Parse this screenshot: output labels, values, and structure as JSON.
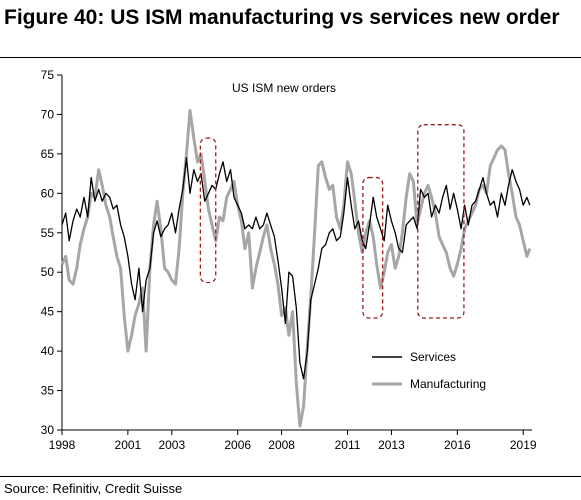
{
  "figure": {
    "title": "Figure 40: US ISM manufacturing vs services new order",
    "source": "Source: Refinitiv, Credit Suisse"
  },
  "colors": {
    "services": "#000000",
    "manufacturing": "#a6a6a6",
    "highlight_box": "#9c1e1e"
  },
  "chart_data": {
    "type": "line",
    "title": "US ISM new orders",
    "xlabel": "",
    "ylabel": "",
    "xlim": [
      1998,
      2019.4
    ],
    "ylim": [
      30,
      75
    ],
    "x_ticks": [
      1998,
      2001,
      2003,
      2006,
      2008,
      2011,
      2013,
      2016,
      2019
    ],
    "y_ticks": [
      30,
      35,
      40,
      45,
      50,
      55,
      60,
      65,
      70,
      75
    ],
    "grid": false,
    "legend": "bottom-right",
    "highlight_periods": [
      {
        "x": [
          2004.3,
          2005.0
        ],
        "y": [
          48.7,
          67.0
        ]
      },
      {
        "x": [
          2011.7,
          2012.6
        ],
        "y": [
          44.2,
          62.0
        ]
      },
      {
        "x": [
          2014.2,
          2016.3
        ],
        "y": [
          44.2,
          68.7
        ]
      }
    ],
    "series": [
      {
        "name": "Services",
        "x": [
          1998.0,
          1998.17,
          1998.33,
          1998.5,
          1998.67,
          1998.83,
          1999.0,
          1999.17,
          1999.33,
          1999.5,
          1999.67,
          1999.83,
          2000.0,
          2000.17,
          2000.33,
          2000.5,
          2000.67,
          2000.83,
          2001.0,
          2001.17,
          2001.33,
          2001.5,
          2001.67,
          2001.83,
          2002.0,
          2002.17,
          2002.33,
          2002.5,
          2002.67,
          2002.83,
          2003.0,
          2003.17,
          2003.33,
          2003.5,
          2003.67,
          2003.83,
          2004.0,
          2004.17,
          2004.33,
          2004.5,
          2004.67,
          2004.83,
          2005.0,
          2005.17,
          2005.33,
          2005.5,
          2005.67,
          2005.83,
          2006.0,
          2006.17,
          2006.33,
          2006.5,
          2006.67,
          2006.83,
          2007.0,
          2007.17,
          2007.33,
          2007.5,
          2007.67,
          2007.83,
          2008.0,
          2008.17,
          2008.33,
          2008.5,
          2008.67,
          2008.83,
          2009.0,
          2009.17,
          2009.33,
          2009.5,
          2009.67,
          2009.83,
          2010.0,
          2010.17,
          2010.33,
          2010.5,
          2010.67,
          2010.83,
          2011.0,
          2011.17,
          2011.33,
          2011.5,
          2011.67,
          2011.83,
          2012.0,
          2012.17,
          2012.33,
          2012.5,
          2012.67,
          2012.83,
          2013.0,
          2013.17,
          2013.33,
          2013.5,
          2013.67,
          2013.83,
          2014.0,
          2014.17,
          2014.33,
          2014.5,
          2014.67,
          2014.83,
          2015.0,
          2015.17,
          2015.33,
          2015.5,
          2015.67,
          2015.83,
          2016.0,
          2016.17,
          2016.33,
          2016.5,
          2016.67,
          2016.83,
          2017.0,
          2017.17,
          2017.33,
          2017.5,
          2017.67,
          2017.83,
          2018.0,
          2018.17,
          2018.33,
          2018.5,
          2018.67,
          2018.83,
          2019.0,
          2019.17,
          2019.3
        ],
        "values": [
          56.0,
          57.5,
          54.0,
          56.5,
          58.0,
          57.0,
          59.5,
          57.0,
          62.0,
          59.0,
          60.5,
          59.0,
          60.0,
          59.5,
          58.0,
          58.5,
          56.0,
          54.5,
          52.0,
          48.5,
          46.5,
          50.5,
          45.0,
          49.0,
          50.5,
          55.0,
          56.5,
          54.5,
          55.5,
          56.0,
          57.5,
          55.0,
          58.0,
          60.5,
          64.5,
          60.0,
          63.0,
          61.5,
          62.5,
          59.0,
          60.0,
          61.0,
          60.5,
          62.5,
          64.0,
          61.5,
          63.0,
          59.5,
          58.5,
          57.5,
          55.5,
          56.0,
          55.5,
          57.0,
          55.5,
          56.0,
          57.5,
          56.0,
          54.5,
          51.5,
          48.0,
          43.5,
          50.0,
          49.5,
          45.5,
          38.5,
          36.5,
          40.0,
          46.5,
          48.5,
          50.5,
          53.0,
          53.5,
          55.0,
          55.5,
          54.0,
          54.5,
          57.5,
          62.0,
          58.5,
          55.5,
          56.5,
          54.0,
          53.0,
          56.0,
          59.5,
          57.0,
          55.5,
          54.0,
          58.5,
          56.5,
          55.0,
          53.0,
          52.5,
          56.0,
          56.5,
          57.0,
          55.5,
          60.5,
          59.5,
          60.0,
          57.0,
          58.5,
          57.5,
          59.5,
          61.0,
          58.0,
          60.0,
          58.0,
          55.5,
          58.5,
          56.0,
          58.5,
          59.0,
          60.5,
          62.0,
          60.0,
          58.5,
          59.0,
          57.0,
          60.0,
          58.5,
          61.0,
          63.0,
          61.5,
          60.5,
          58.5,
          59.5,
          58.5
        ]
      },
      {
        "name": "Manufacturing",
        "x": [
          1998.0,
          1998.17,
          1998.33,
          1998.5,
          1998.67,
          1998.83,
          1999.0,
          1999.17,
          1999.33,
          1999.5,
          1999.67,
          1999.83,
          2000.0,
          2000.17,
          2000.33,
          2000.5,
          2000.67,
          2000.83,
          2001.0,
          2001.17,
          2001.33,
          2001.5,
          2001.67,
          2001.83,
          2002.0,
          2002.17,
          2002.33,
          2002.5,
          2002.67,
          2002.83,
          2003.0,
          2003.17,
          2003.33,
          2003.5,
          2003.67,
          2003.83,
          2004.0,
          2004.17,
          2004.33,
          2004.5,
          2004.67,
          2004.83,
          2005.0,
          2005.17,
          2005.33,
          2005.5,
          2005.67,
          2005.83,
          2006.0,
          2006.17,
          2006.33,
          2006.5,
          2006.67,
          2006.83,
          2007.0,
          2007.17,
          2007.33,
          2007.5,
          2007.67,
          2007.83,
          2008.0,
          2008.17,
          2008.33,
          2008.5,
          2008.67,
          2008.83,
          2009.0,
          2009.17,
          2009.33,
          2009.5,
          2009.67,
          2009.83,
          2010.0,
          2010.17,
          2010.33,
          2010.5,
          2010.67,
          2010.83,
          2011.0,
          2011.17,
          2011.33,
          2011.5,
          2011.67,
          2011.83,
          2012.0,
          2012.17,
          2012.33,
          2012.5,
          2012.67,
          2012.83,
          2013.0,
          2013.17,
          2013.33,
          2013.5,
          2013.67,
          2013.83,
          2014.0,
          2014.17,
          2014.33,
          2014.5,
          2014.67,
          2014.83,
          2015.0,
          2015.17,
          2015.33,
          2015.5,
          2015.67,
          2015.83,
          2016.0,
          2016.17,
          2016.33,
          2016.5,
          2016.67,
          2016.83,
          2017.0,
          2017.17,
          2017.33,
          2017.5,
          2017.67,
          2017.83,
          2018.0,
          2018.17,
          2018.33,
          2018.5,
          2018.67,
          2018.83,
          2019.0,
          2019.17,
          2019.3
        ],
        "values": [
          51.0,
          52.0,
          49.0,
          48.5,
          50.5,
          53.5,
          55.5,
          57.0,
          60.0,
          59.5,
          63.0,
          61.0,
          58.5,
          57.0,
          54.5,
          52.0,
          50.5,
          44.5,
          40.0,
          42.0,
          44.5,
          46.0,
          48.0,
          40.0,
          50.5,
          56.0,
          59.0,
          55.5,
          50.5,
          50.0,
          49.0,
          48.5,
          53.0,
          60.0,
          65.0,
          70.5,
          67.0,
          64.0,
          65.0,
          61.5,
          58.0,
          56.0,
          54.0,
          57.0,
          56.5,
          59.5,
          60.5,
          61.5,
          58.5,
          56.5,
          53.0,
          55.0,
          48.0,
          50.5,
          52.5,
          54.5,
          56.0,
          53.0,
          51.0,
          48.5,
          44.5,
          45.5,
          42.0,
          45.0,
          36.0,
          30.5,
          33.0,
          40.5,
          47.0,
          55.0,
          63.5,
          64.0,
          62.0,
          60.5,
          61.0,
          57.0,
          55.5,
          58.5,
          64.0,
          62.5,
          59.0,
          55.0,
          52.5,
          55.0,
          56.5,
          54.5,
          51.0,
          48.0,
          50.0,
          52.5,
          53.5,
          50.5,
          52.0,
          55.0,
          59.5,
          62.5,
          61.5,
          56.0,
          58.0,
          60.0,
          61.0,
          59.5,
          57.5,
          54.5,
          53.5,
          52.5,
          50.5,
          49.5,
          51.0,
          53.0,
          55.5,
          56.5,
          57.5,
          58.5,
          60.5,
          61.0,
          60.0,
          63.5,
          64.5,
          65.5,
          66.0,
          65.5,
          62.5,
          60.0,
          57.0,
          56.0,
          54.0,
          52.0,
          53.0
        ]
      }
    ]
  }
}
